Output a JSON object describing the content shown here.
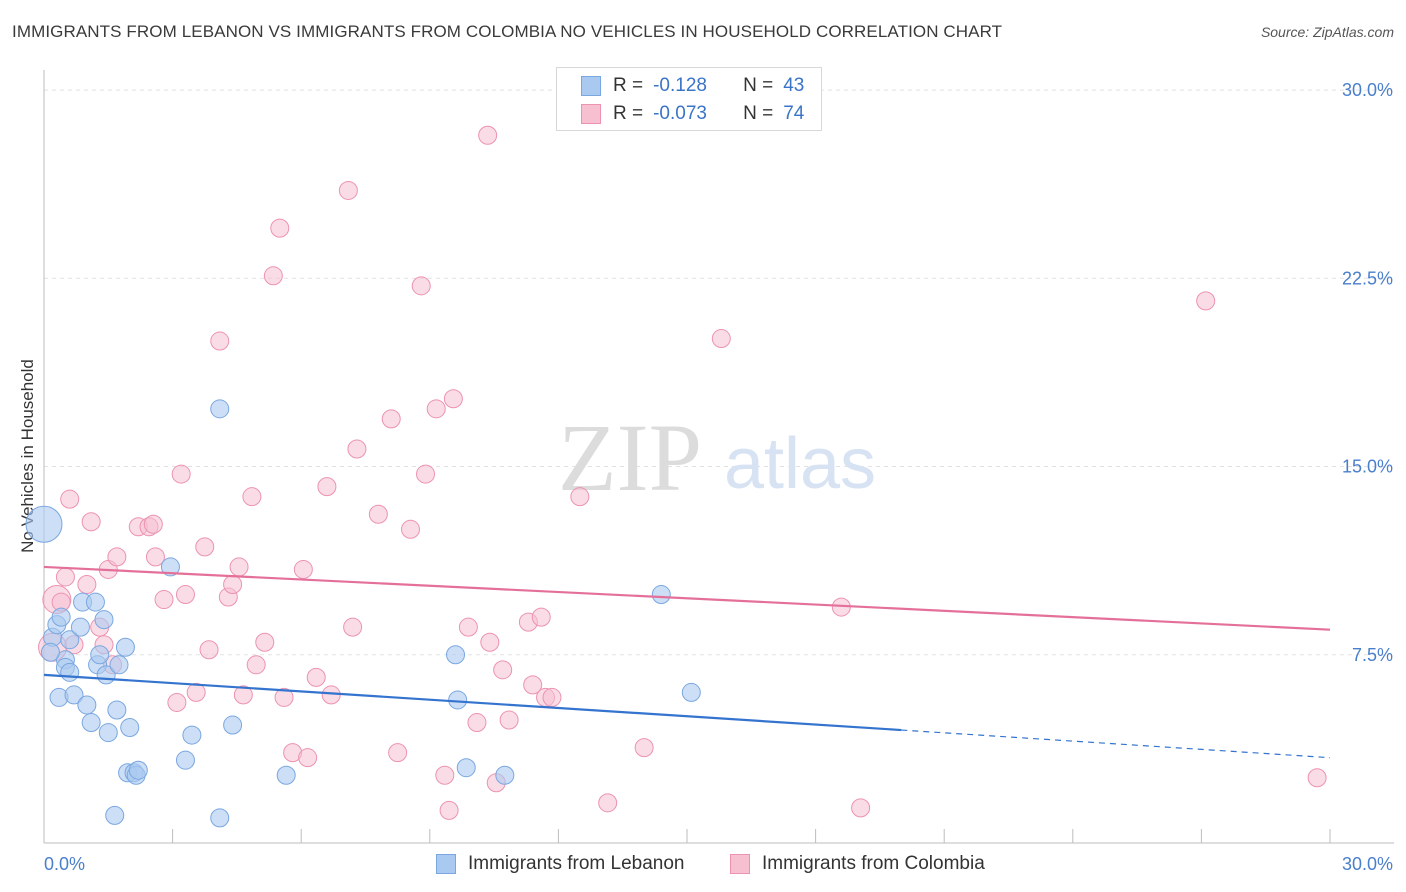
{
  "title": "IMMIGRANTS FROM LEBANON VS IMMIGRANTS FROM COLOMBIA NO VEHICLES IN HOUSEHOLD CORRELATION CHART",
  "source": "Source: ZipAtlas.com",
  "watermark": {
    "zip": "ZIP",
    "atlas": "atlas"
  },
  "legend": {
    "lebanon": {
      "r_label": "R =",
      "r_value": "-0.128",
      "n_label": "N =",
      "n_value": "43"
    },
    "colombia": {
      "r_label": "R =",
      "r_value": "-0.073",
      "n_label": "N =",
      "n_value": "74"
    }
  },
  "bottom_legend": {
    "lebanon": "Immigrants from Lebanon",
    "colombia": "Immigrants from Colombia"
  },
  "colors": {
    "lebanon_fill": "#aac9f0",
    "lebanon_stroke": "#7aa7e0",
    "lebanon_line": "#3474cf",
    "colombia_fill": "#f6c0d1",
    "colombia_stroke": "#ec93b1",
    "colombia_line": "#e4709a",
    "tick_label": "#4a7fcb",
    "grid": "#e2e2e2"
  },
  "chart_data": {
    "type": "scatter",
    "title": "IMMIGRANTS FROM LEBANON VS IMMIGRANTS FROM COLOMBIA NO VEHICLES IN HOUSEHOLD CORRELATION CHART",
    "xlabel": "",
    "ylabel": "No Vehicles in Household",
    "xlim": [
      0,
      30
    ],
    "ylim": [
      0,
      30.8
    ],
    "x_tick_labels": [
      "0.0%",
      "30.0%"
    ],
    "y_ticks": [
      7.5,
      15.0,
      22.5,
      30.0
    ],
    "y_tick_labels": [
      "7.5%",
      "15.0%",
      "22.5%",
      "30.0%"
    ],
    "grid": true,
    "legend_position": "top-center",
    "series": [
      {
        "name": "Immigrants from Lebanon",
        "r": -0.128,
        "n": 43,
        "trend": {
          "x0": 0,
          "y0": 6.7,
          "x1": 20.0,
          "y1": 4.5,
          "dashed_to_x": 30,
          "dashed_to_y": 3.4
        },
        "points": [
          [
            0.0,
            12.7,
            18
          ],
          [
            0.2,
            8.2,
            9
          ],
          [
            0.3,
            8.7,
            9
          ],
          [
            0.4,
            9.0,
            9
          ],
          [
            0.35,
            5.8,
            9
          ],
          [
            0.5,
            7.3,
            9
          ],
          [
            0.5,
            7.0,
            9
          ],
          [
            0.6,
            6.8,
            9
          ],
          [
            0.6,
            8.1,
            9
          ],
          [
            0.7,
            5.9,
            9
          ],
          [
            0.85,
            8.6,
            9
          ],
          [
            0.9,
            9.6,
            9
          ],
          [
            1.0,
            5.5,
            9
          ],
          [
            1.1,
            4.8,
            9
          ],
          [
            1.2,
            9.6,
            9
          ],
          [
            1.25,
            7.1,
            9
          ],
          [
            1.3,
            7.5,
            9
          ],
          [
            1.4,
            8.9,
            9
          ],
          [
            1.45,
            6.7,
            9
          ],
          [
            1.5,
            4.4,
            9
          ],
          [
            1.7,
            5.3,
            9
          ],
          [
            1.75,
            7.1,
            9
          ],
          [
            1.9,
            7.8,
            9
          ],
          [
            1.95,
            2.8,
            9
          ],
          [
            2.0,
            4.6,
            9
          ],
          [
            2.1,
            2.8,
            9
          ],
          [
            2.15,
            2.7,
            9
          ],
          [
            2.2,
            2.9,
            9
          ],
          [
            1.65,
            1.1,
            9
          ],
          [
            2.95,
            11.0,
            9
          ],
          [
            3.3,
            3.3,
            9
          ],
          [
            3.45,
            4.3,
            9
          ],
          [
            4.1,
            1.0,
            9
          ],
          [
            4.4,
            4.7,
            9
          ],
          [
            4.1,
            17.3,
            9
          ],
          [
            5.65,
            2.7,
            9
          ],
          [
            9.6,
            7.5,
            9
          ],
          [
            9.65,
            5.7,
            9
          ],
          [
            9.85,
            3.0,
            9
          ],
          [
            10.75,
            2.7,
            9
          ],
          [
            14.4,
            9.9,
            9
          ],
          [
            15.1,
            6.0,
            9
          ],
          [
            0.15,
            7.6,
            9
          ]
        ]
      },
      {
        "name": "Immigrants from Colombia",
        "r": -0.073,
        "n": 74,
        "trend": {
          "x0": 0,
          "y0": 11.0,
          "x1": 30,
          "y1": 8.5
        },
        "points": [
          [
            0.2,
            7.8,
            14
          ],
          [
            0.3,
            9.7,
            14
          ],
          [
            0.4,
            9.6,
            9
          ],
          [
            0.5,
            10.6,
            9
          ],
          [
            0.6,
            13.7,
            9
          ],
          [
            1.0,
            10.3,
            9
          ],
          [
            1.1,
            12.8,
            9
          ],
          [
            1.3,
            8.6,
            9
          ],
          [
            1.4,
            7.9,
            9
          ],
          [
            1.5,
            10.9,
            9
          ],
          [
            1.6,
            7.1,
            9
          ],
          [
            1.7,
            11.4,
            9
          ],
          [
            2.2,
            12.6,
            9
          ],
          [
            2.45,
            12.6,
            9
          ],
          [
            2.55,
            12.7,
            9
          ],
          [
            2.6,
            11.4,
            9
          ],
          [
            2.8,
            9.7,
            9
          ],
          [
            3.1,
            5.6,
            9
          ],
          [
            3.2,
            14.7,
            9
          ],
          [
            3.3,
            9.9,
            9
          ],
          [
            3.55,
            6.0,
            9
          ],
          [
            3.75,
            11.8,
            9
          ],
          [
            3.85,
            7.7,
            9
          ],
          [
            4.1,
            20.0,
            9
          ],
          [
            4.3,
            9.8,
            9
          ],
          [
            4.4,
            10.3,
            9
          ],
          [
            4.55,
            11.0,
            9
          ],
          [
            4.65,
            5.9,
            9
          ],
          [
            4.85,
            13.8,
            9
          ],
          [
            4.95,
            7.1,
            9
          ],
          [
            5.15,
            8.0,
            9
          ],
          [
            5.35,
            22.6,
            9
          ],
          [
            5.5,
            24.5,
            9
          ],
          [
            5.6,
            5.8,
            9
          ],
          [
            5.8,
            3.6,
            9
          ],
          [
            6.05,
            10.9,
            9
          ],
          [
            6.15,
            3.4,
            9
          ],
          [
            6.35,
            6.6,
            9
          ],
          [
            6.6,
            14.2,
            9
          ],
          [
            6.7,
            5.9,
            9
          ],
          [
            7.1,
            26.0,
            9
          ],
          [
            7.2,
            8.6,
            9
          ],
          [
            7.3,
            15.7,
            9
          ],
          [
            7.8,
            13.1,
            9
          ],
          [
            8.1,
            16.9,
            9
          ],
          [
            8.25,
            3.6,
            9
          ],
          [
            8.55,
            12.5,
            9
          ],
          [
            8.8,
            22.2,
            9
          ],
          [
            8.9,
            14.7,
            9
          ],
          [
            9.15,
            17.3,
            9
          ],
          [
            9.35,
            2.7,
            9
          ],
          [
            9.45,
            1.3,
            9
          ],
          [
            9.55,
            17.7,
            9
          ],
          [
            9.9,
            8.6,
            9
          ],
          [
            10.1,
            4.8,
            9
          ],
          [
            10.35,
            28.2,
            9
          ],
          [
            10.4,
            8.0,
            9
          ],
          [
            10.55,
            2.4,
            9
          ],
          [
            10.7,
            6.9,
            9
          ],
          [
            10.85,
            4.9,
            9
          ],
          [
            11.3,
            8.8,
            9
          ],
          [
            11.4,
            6.3,
            9
          ],
          [
            11.6,
            9.0,
            9
          ],
          [
            11.7,
            5.8,
            9
          ],
          [
            11.85,
            5.8,
            9
          ],
          [
            12.5,
            13.8,
            9
          ],
          [
            13.15,
            1.6,
            9
          ],
          [
            14.0,
            3.8,
            9
          ],
          [
            15.8,
            20.1,
            9
          ],
          [
            18.6,
            9.4,
            9
          ],
          [
            19.05,
            1.4,
            9
          ],
          [
            27.1,
            21.6,
            9
          ],
          [
            29.7,
            2.6,
            9
          ],
          [
            0.7,
            7.9,
            9
          ]
        ]
      }
    ]
  }
}
